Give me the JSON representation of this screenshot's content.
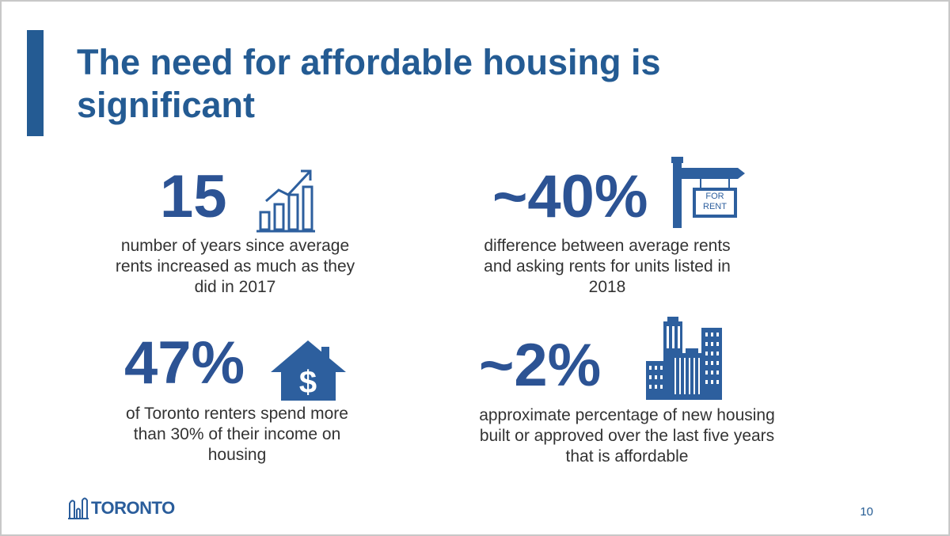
{
  "slide": {
    "title": "The need for affordable housing is significant",
    "page_number": "10",
    "logo_text": "TORONTO"
  },
  "stats": [
    {
      "value": "15",
      "icon": "bar-chart-growth-icon",
      "description": "number of years since average rents increased as much as they did in 2017"
    },
    {
      "value": "~40%",
      "icon": "for-rent-sign-icon",
      "icon_text": "FOR RENT",
      "description": "difference between average rents and asking rents for units listed in 2018"
    },
    {
      "value": "47%",
      "icon": "house-dollar-icon",
      "description": "of Toronto renters spend more than 30% of their income on housing"
    },
    {
      "value": "~2%",
      "icon": "city-buildings-icon",
      "description": "approximate percentage of new housing built or approved over the last five years that is affordable"
    }
  ],
  "colors": {
    "accent": "#245b93",
    "number": "#2c5394",
    "icon": "#2d5f9e"
  }
}
